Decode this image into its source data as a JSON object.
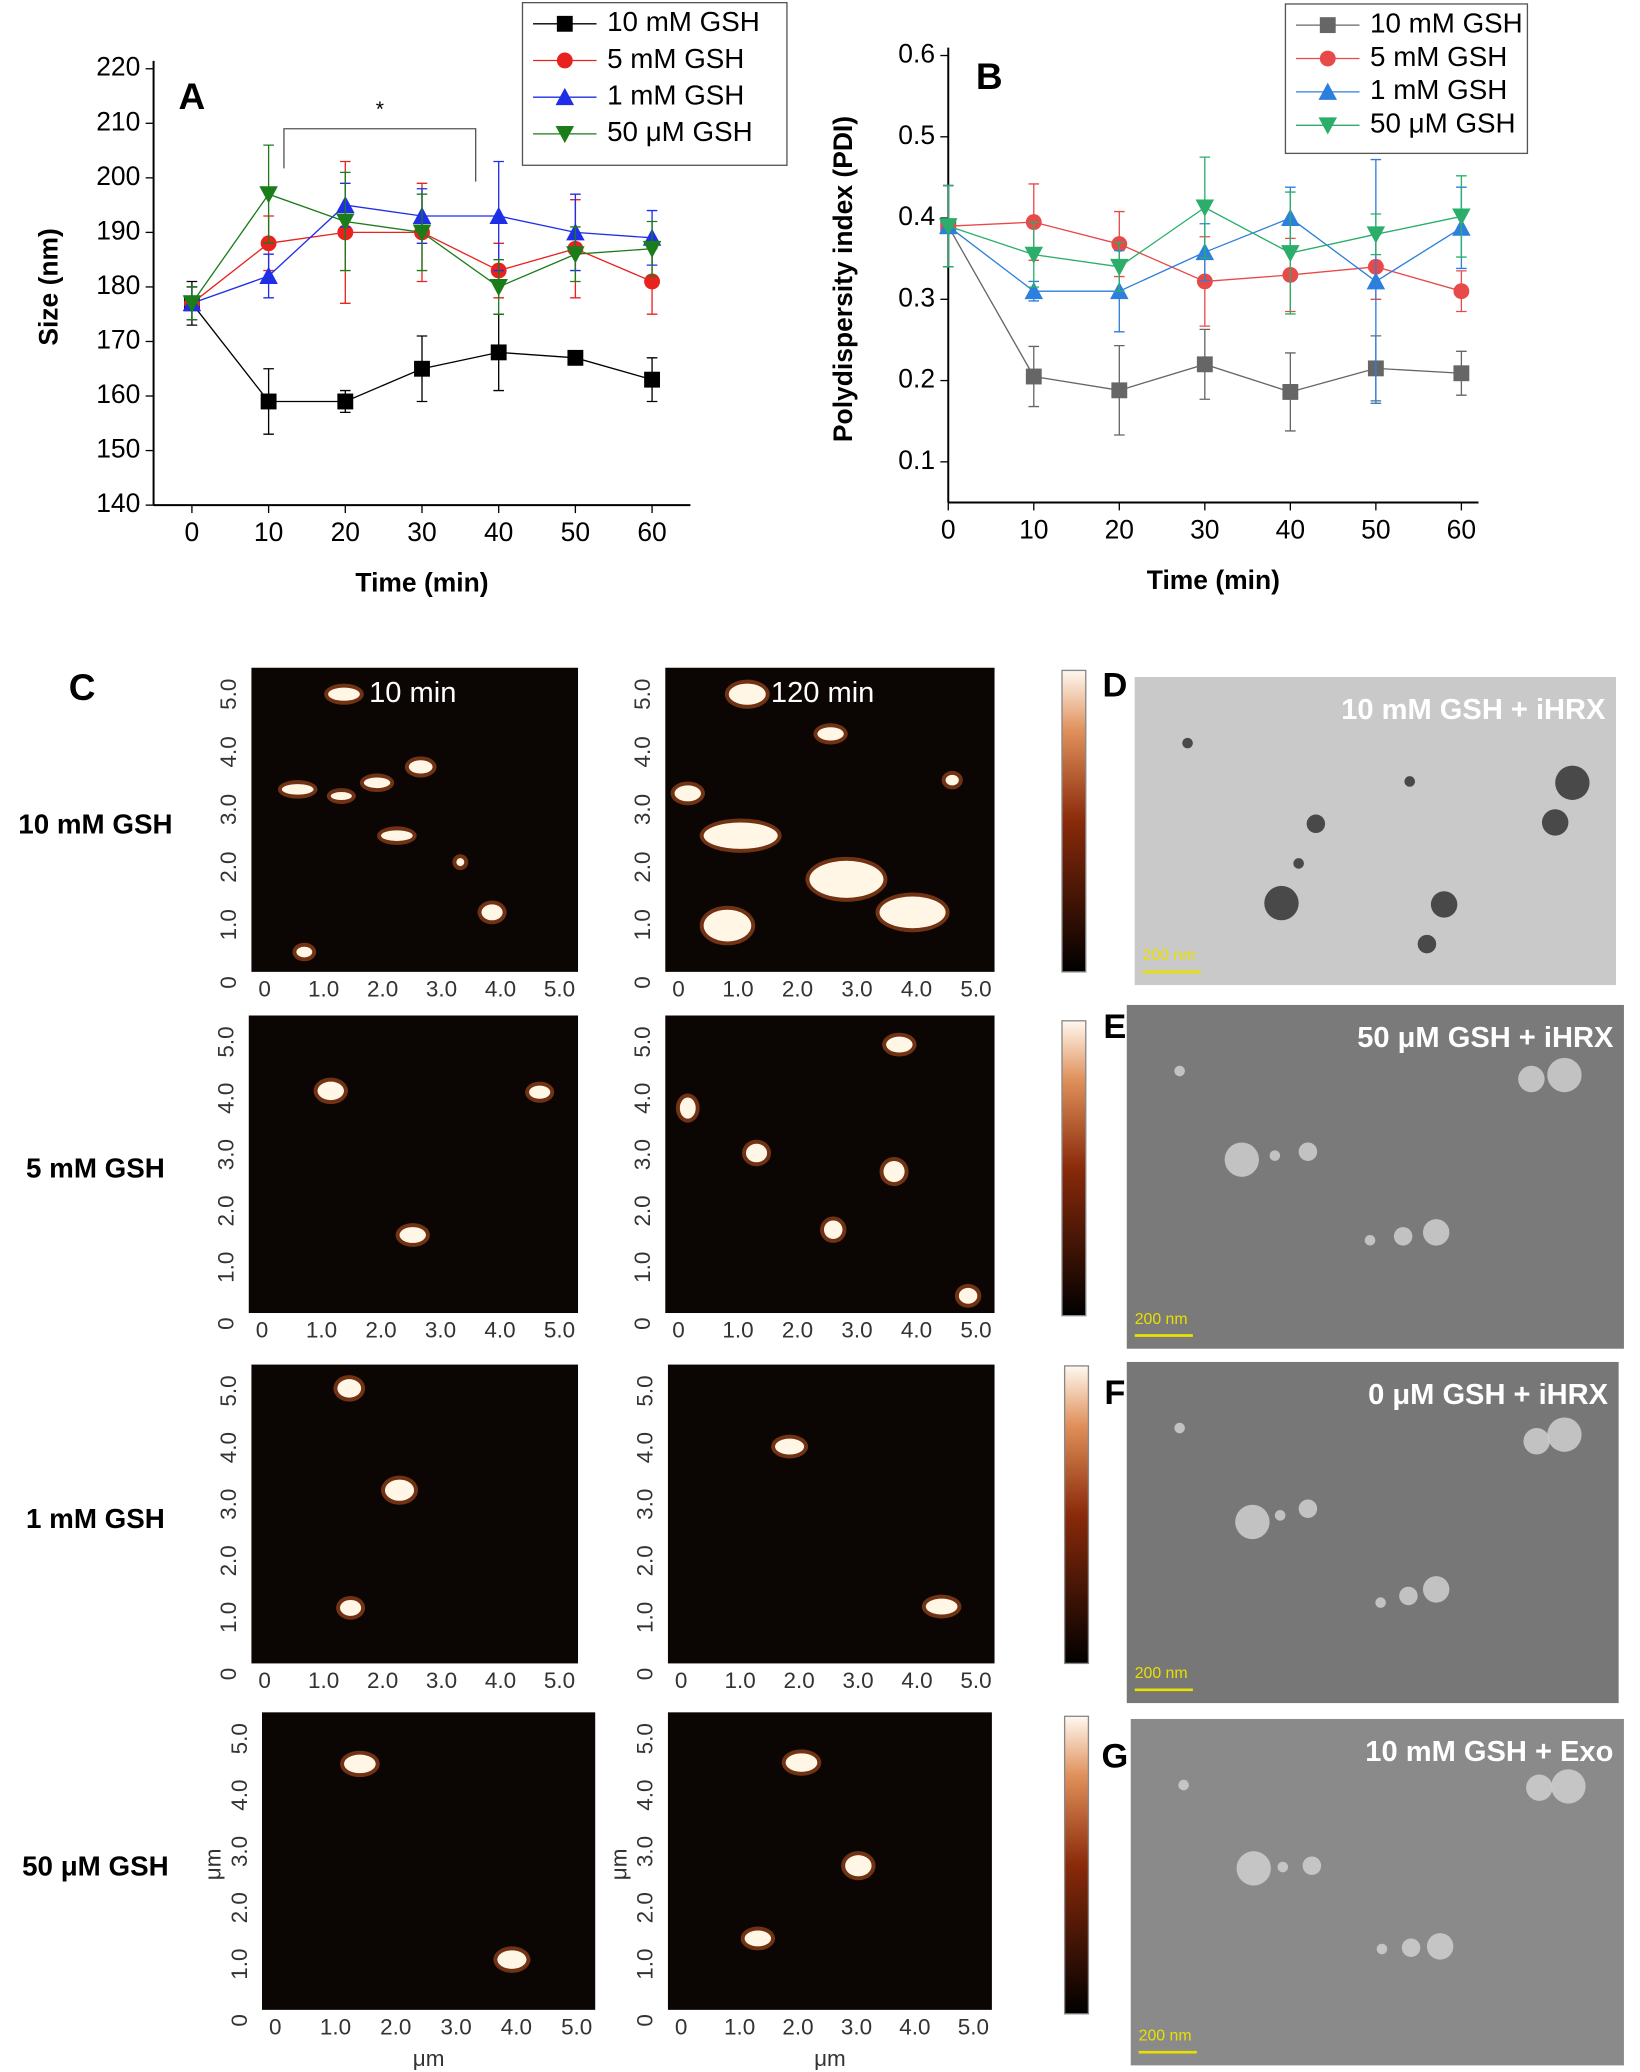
{
  "chart_data": [
    {
      "type": "line",
      "label": "A",
      "ylabel": "Size (nm)",
      "xlabel": "Time (min)",
      "annotation": "*",
      "x": [
        0,
        10,
        20,
        30,
        40,
        50,
        60
      ],
      "xlim": [
        -5,
        65
      ],
      "xticks": [
        0,
        10,
        20,
        30,
        40,
        50,
        60
      ],
      "ylim": [
        140,
        220
      ],
      "yticks": [
        140,
        150,
        160,
        170,
        180,
        190,
        200,
        210,
        220
      ],
      "legend": "upper right",
      "series": [
        {
          "name": "10 mM GSH",
          "color": "#000000",
          "marker": "square",
          "values": [
            177,
            159,
            159,
            165,
            168,
            167,
            163
          ],
          "errors": [
            4,
            6,
            2,
            6,
            7,
            0,
            4
          ]
        },
        {
          "name": "5 mM GSH",
          "color": "#e8231f",
          "marker": "circle",
          "values": [
            177,
            188,
            190,
            190,
            183,
            187,
            181
          ],
          "errors": [
            3,
            5,
            13,
            9,
            5,
            9,
            6
          ]
        },
        {
          "name": "1 mM GSH",
          "color": "#1f2fe8",
          "marker": "triangle-up",
          "values": [
            177,
            182,
            195,
            193,
            193,
            190,
            189
          ],
          "errors": [
            3,
            4,
            4,
            5,
            10,
            7,
            5
          ]
        },
        {
          "name": "50 μM GSH",
          "color": "#1a7d1a",
          "marker": "triangle-down",
          "values": [
            177,
            197,
            192,
            190,
            180,
            186,
            187
          ],
          "errors": [
            3,
            9,
            9,
            7,
            5,
            5,
            5
          ]
        }
      ]
    },
    {
      "type": "line",
      "label": "B",
      "ylabel": "Polydispersity index (PDI)",
      "xlabel": "Time (min)",
      "x": [
        0,
        10,
        20,
        30,
        40,
        50,
        60
      ],
      "xlim": [
        0,
        62
      ],
      "xticks": [
        0,
        10,
        20,
        30,
        40,
        50,
        60
      ],
      "ylim": [
        0.05,
        0.6
      ],
      "yticks": [
        0.1,
        0.2,
        0.3,
        0.4,
        0.5,
        0.6
      ],
      "legend": "upper right",
      "series": [
        {
          "name": "10 mM GSH",
          "color": "#666666",
          "marker": "square",
          "values": [
            0.39,
            0.205,
            0.188,
            0.22,
            0.186,
            0.215,
            0.209
          ],
          "errors": [
            0.05,
            0.037,
            0.055,
            0.043,
            0.048,
            0.04,
            0.027
          ]
        },
        {
          "name": "5 mM GSH",
          "color": "#e84a4a",
          "marker": "circle",
          "values": [
            0.39,
            0.395,
            0.368,
            0.322,
            0.33,
            0.34,
            0.31
          ],
          "errors": [
            0.05,
            0.047,
            0.04,
            0.055,
            0.045,
            0.04,
            0.025
          ]
        },
        {
          "name": "1 mM GSH",
          "color": "#2d7fdd",
          "marker": "triangle-up",
          "values": [
            0.39,
            0.31,
            0.31,
            0.358,
            0.4,
            0.322,
            0.388
          ],
          "errors": [
            0.05,
            0.012,
            0.05,
            0.035,
            0.038,
            0.15,
            0.05
          ]
        },
        {
          "name": "50 μM GSH",
          "color": "#2aae6a",
          "marker": "triangle-down",
          "values": [
            0.39,
            0.355,
            0.34,
            0.413,
            0.357,
            0.38,
            0.402
          ],
          "errors": [
            0.05,
            0.04,
            0.03,
            0.062,
            0.075,
            0.025,
            0.05
          ]
        }
      ]
    }
  ],
  "panels": {
    "afm_label": "C",
    "rows": [
      "10 mM GSH",
      "5 mM GSH",
      "1 mM GSH",
      "50 μM GSH"
    ],
    "times": [
      "10 min",
      "120 min"
    ],
    "afm_ticks": [
      "0",
      "1.0",
      "2.0",
      "3.0",
      "4.0",
      "5.0"
    ],
    "unit": "μm",
    "tem": [
      {
        "label": "D",
        "caption": "10 mM GSH + iHRX"
      },
      {
        "label": "E",
        "caption": "50 μM GSH + iHRX"
      },
      {
        "label": "F",
        "caption": "0 μM GSH + iHRX"
      },
      {
        "label": "G",
        "caption": "10 mM GSH + Exo"
      }
    ],
    "scale_bar": "200 nm"
  }
}
